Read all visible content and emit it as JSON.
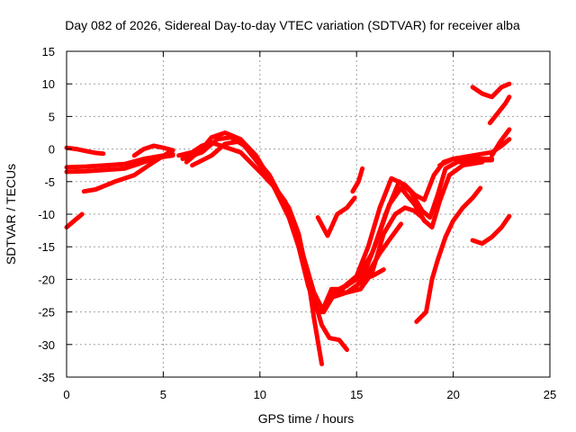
{
  "chart_data": {
    "type": "line",
    "title": "Day 082 of 2026, Sidereal Day-to-day VTEC variation (SDTVAR) for receiver alba",
    "xlabel": "GPS time / hours",
    "ylabel": "SDTVAR / TECUs",
    "xlim": [
      0,
      25
    ],
    "ylim": [
      -35,
      15
    ],
    "xticks": [
      0,
      5,
      10,
      15,
      20,
      25
    ],
    "yticks": [
      -35,
      -30,
      -25,
      -20,
      -15,
      -10,
      -5,
      0,
      5,
      10,
      15
    ],
    "grid": true,
    "legend": "none",
    "series_color": "#ff0000",
    "series": [
      {
        "x": [
          0,
          0.4,
          0.8
        ],
        "y": [
          -12,
          -11,
          -10
        ]
      },
      {
        "x": [
          0,
          0.5,
          1.0,
          1.5,
          1.9
        ],
        "y": [
          0.2,
          0,
          -0.3,
          -0.6,
          -0.7
        ]
      },
      {
        "x": [
          0,
          1,
          2,
          3,
          3.5,
          4,
          4.5,
          5,
          5.5
        ],
        "y": [
          -3.5,
          -3.4,
          -3.2,
          -3.0,
          -2.5,
          -2.0,
          -1.5,
          -1.2,
          -1.0
        ]
      },
      {
        "x": [
          0,
          1,
          2,
          3,
          4,
          5,
          5.5
        ],
        "y": [
          -2.8,
          -2.7,
          -2.5,
          -2.3,
          -1.5,
          -1.0,
          -0.8
        ]
      },
      {
        "x": [
          0.9,
          1.5,
          2.5,
          3.5,
          4.5,
          5.3
        ],
        "y": [
          -6.5,
          -6.2,
          -5.0,
          -4.0,
          -2.0,
          -0.5
        ]
      },
      {
        "x": [
          3.5,
          4,
          4.5,
          5,
          5.5
        ],
        "y": [
          -1.0,
          0,
          0.5,
          0.2,
          -0.2
        ]
      },
      {
        "x": [
          5.8,
          6.5,
          7.0,
          7.5,
          8.0,
          9.0,
          10.0,
          10.8,
          11.3,
          11.6,
          12.0,
          12.5,
          12.8,
          13.2,
          13.6,
          14.1,
          14.5
        ],
        "y": [
          -1.0,
          -0.5,
          0.5,
          1.0,
          0.5,
          -0.5,
          -3.5,
          -6.0,
          -8.0,
          -10.0,
          -14.0,
          -19.0,
          -23.0,
          -27.0,
          -29.0,
          -29.3,
          -30.8
        ]
      },
      {
        "x": [
          6.0,
          7.0,
          7.8,
          8.5,
          9.2,
          10.0,
          10.8,
          11.5,
          12.0,
          12.5,
          12.8,
          13.2
        ],
        "y": [
          -1.5,
          -0.5,
          1.5,
          1.8,
          0.5,
          -2.5,
          -6.0,
          -9.0,
          -13.0,
          -20.0,
          -26.0,
          -33.0
        ]
      },
      {
        "x": [
          6.2,
          7.0,
          7.5,
          8.2,
          9.0,
          9.8,
          10.5,
          11.0,
          11.5,
          12.0,
          12.5,
          12.9,
          13.2,
          13.7,
          14.1,
          14.5
        ],
        "y": [
          -2.0,
          0,
          1.8,
          2.5,
          1.5,
          -1.0,
          -4.5,
          -7.5,
          -10.5,
          -15.0,
          -21.0,
          -24.5,
          -25.0,
          -21.5,
          -21.5,
          -21.0
        ]
      },
      {
        "x": [
          6.5,
          7.5,
          8.2,
          9.0,
          9.8,
          10.5,
          11.2,
          11.8,
          12.4,
          12.8,
          13.3,
          13.8,
          14.3
        ],
        "y": [
          -2.5,
          -1.0,
          0.8,
          1.2,
          -1.5,
          -4.0,
          -8.0,
          -12.0,
          -18.0,
          -22.0,
          -25.0,
          -22.5,
          -21.5
        ]
      },
      {
        "x": [
          13.0,
          13.5,
          14.0,
          14.5,
          14.9
        ],
        "y": [
          -10.5,
          -13.3,
          -10.0,
          -9.0,
          -7.5
        ]
      },
      {
        "x": [
          14.8,
          15.1,
          15.3
        ],
        "y": [
          -6.5,
          -5.0,
          -3.0
        ]
      },
      {
        "x": [
          13.5,
          14.0,
          14.5,
          15.2,
          15.8,
          16.4,
          17.0,
          17.5,
          18.0,
          18.4
        ],
        "y": [
          -23.0,
          -22.5,
          -22.0,
          -21.5,
          -19.0,
          -13.0,
          -10.0,
          -9.0,
          -9.5,
          -10.5
        ]
      },
      {
        "x": [
          13.8,
          14.4,
          15.0,
          15.6,
          16.2,
          16.8,
          17.5,
          18.0,
          18.5,
          19.0,
          19.5,
          20.0,
          21.0,
          22.0
        ],
        "y": [
          -22.0,
          -21.0,
          -19.5,
          -15.0,
          -9.0,
          -4.5,
          -5.5,
          -7.0,
          -7.8,
          -4.0,
          -2.0,
          -1.5,
          -1.5,
          -1.5
        ]
      },
      {
        "x": [
          14.2,
          15.0,
          15.8,
          16.5,
          17.2,
          17.8,
          18.4,
          18.8,
          19.2,
          19.6,
          20.2,
          21.0,
          22.0
        ],
        "y": [
          -21.5,
          -20.0,
          -16.0,
          -10.0,
          -5.0,
          -6.5,
          -9.5,
          -10.5,
          -7.0,
          -3.0,
          -2.0,
          -1.8,
          -1.7
        ]
      },
      {
        "x": [
          14.5,
          15.2,
          16.0,
          16.7,
          17.3,
          18.0,
          18.5,
          18.9,
          19.3,
          19.8,
          20.5,
          21.5
        ],
        "y": [
          -22.0,
          -20.5,
          -14.5,
          -8.5,
          -6.0,
          -8.5,
          -11.0,
          -12.0,
          -8.0,
          -4.0,
          -2.5,
          -2.0
        ]
      },
      {
        "x": [
          15.0,
          15.6,
          16.2,
          16.8,
          17.3
        ],
        "y": [
          -21.0,
          -19.0,
          -16.0,
          -13.5,
          -11.5
        ]
      },
      {
        "x": [
          15.3,
          15.8,
          16.4
        ],
        "y": [
          -20.0,
          -19.5,
          -18.5
        ]
      },
      {
        "x": [
          18.1,
          18.6,
          18.9,
          19.2,
          19.6,
          20.0,
          20.5,
          21.0,
          21.4
        ],
        "y": [
          -26.5,
          -25.0,
          -20.0,
          -17.0,
          -13.5,
          -11.0,
          -9.0,
          -7.5,
          -6.0
        ]
      },
      {
        "x": [
          19.3,
          20.0,
          21.0,
          22.0,
          22.5,
          22.9
        ],
        "y": [
          -2.5,
          -1.5,
          -1.0,
          -0.5,
          0.5,
          1.5
        ]
      },
      {
        "x": [
          21.0,
          21.5,
          22.0,
          22.5,
          22.9
        ],
        "y": [
          -14.0,
          -14.5,
          -13.5,
          -12.0,
          -10.3
        ]
      },
      {
        "x": [
          21.0,
          21.5,
          22.0,
          22.5,
          22.9
        ],
        "y": [
          9.5,
          8.5,
          8.0,
          9.5,
          10.0
        ]
      },
      {
        "x": [
          21.9,
          22.3,
          22.7,
          22.9
        ],
        "y": [
          4.0,
          5.5,
          7.0,
          8.0
        ]
      },
      {
        "x": [
          22.0,
          22.4,
          22.9
        ],
        "y": [
          -1.0,
          1.0,
          3.0
        ]
      }
    ]
  }
}
